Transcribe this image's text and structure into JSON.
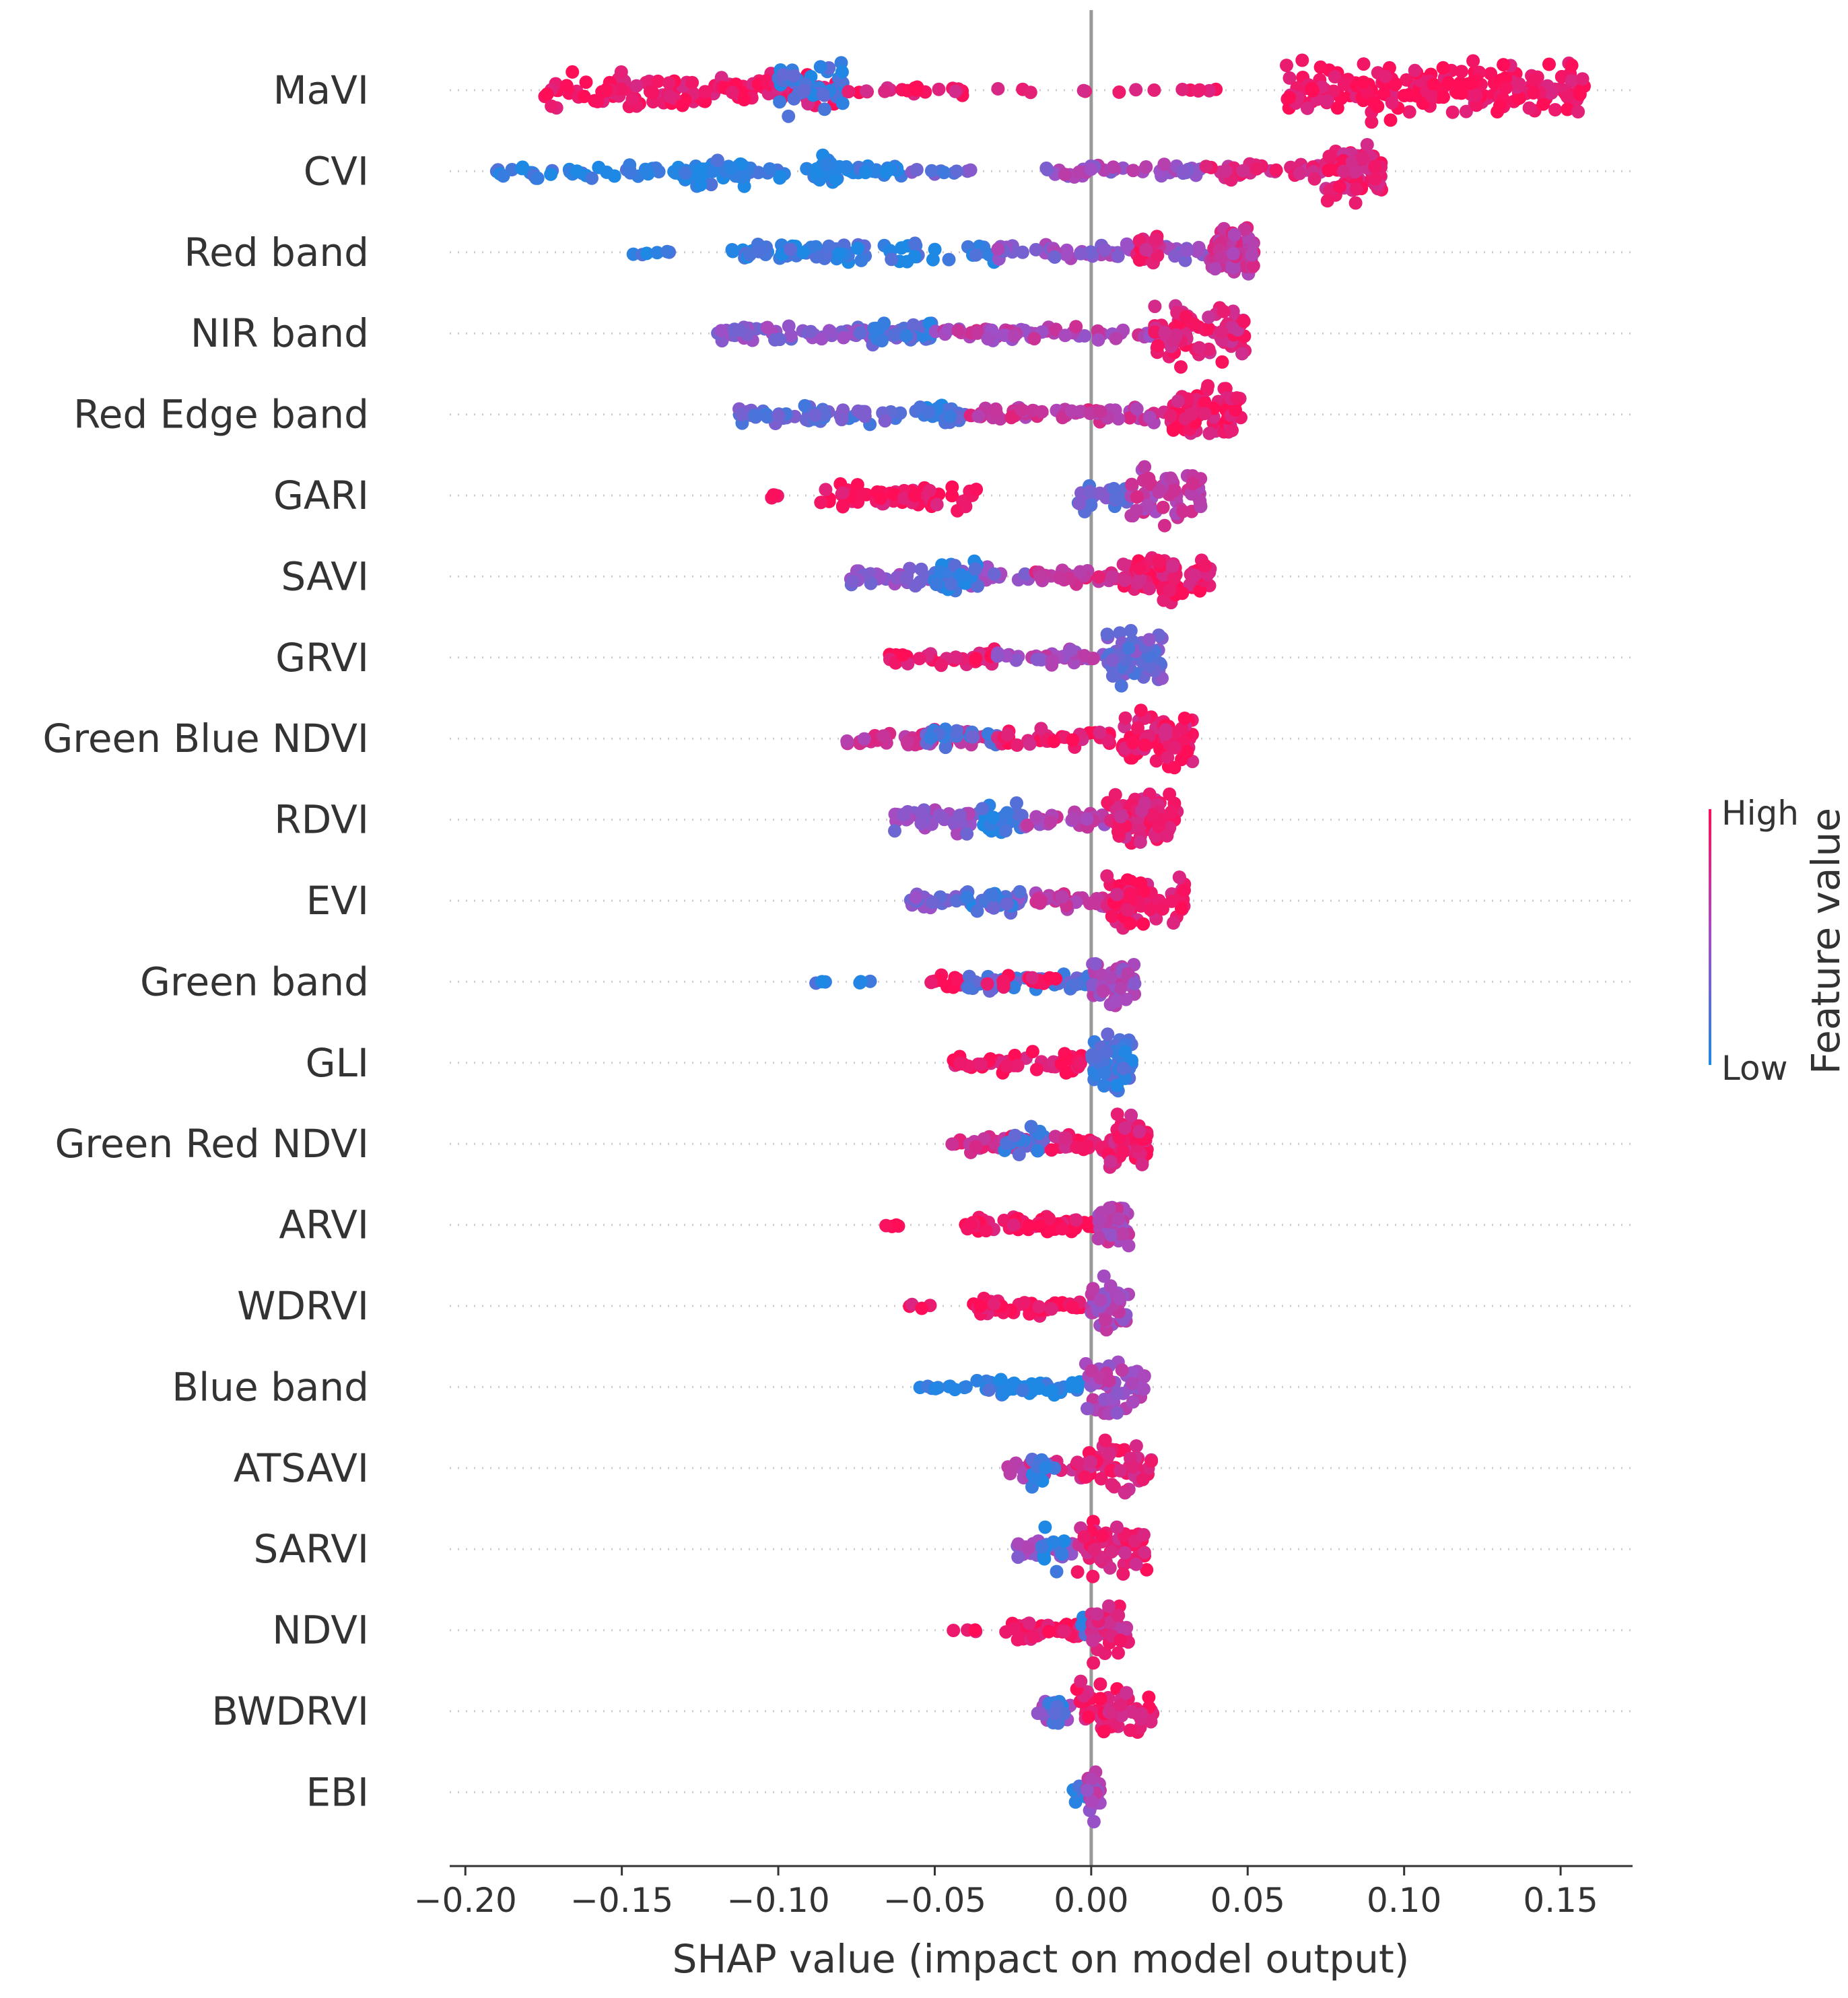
{
  "chart_data": {
    "type": "scatter",
    "subtype": "shap-beeswarm",
    "title": "",
    "xlabel": "SHAP value (impact on model output)",
    "ylabel": "",
    "xlim": [
      -0.205,
      0.173
    ],
    "xticks": [
      -0.2,
      -0.15,
      -0.1,
      -0.05,
      0.0,
      0.05,
      0.1,
      0.15
    ],
    "xtick_labels": [
      "−0.20",
      "−0.15",
      "−0.10",
      "−0.05",
      "0.00",
      "0.05",
      "0.10",
      "0.15"
    ],
    "grid": "dotted horizontal row guides",
    "zero_line": 0.0,
    "colorbar": {
      "title": "Feature value",
      "high_label": "High",
      "low_label": "Low",
      "high_color": "#ff0d57",
      "mid_color": "#a14ec6",
      "low_color": "#1e88e5"
    },
    "features": [
      {
        "name": "MaVI",
        "clusters": [
          {
            "x0": -0.175,
            "x1": -0.08,
            "c": 0.92,
            "w": 0.3,
            "n": 140
          },
          {
            "x0": -0.1,
            "x1": -0.078,
            "c": 0.15,
            "w": 0.45,
            "n": 40
          },
          {
            "x0": -0.08,
            "x1": -0.04,
            "c": 0.9,
            "w": 0.1,
            "n": 20
          },
          {
            "x0": -0.03,
            "x1": 0.045,
            "c": 0.92,
            "w": 0.05,
            "n": 14
          },
          {
            "x0": 0.062,
            "x1": 0.158,
            "c": 0.95,
            "w": 0.45,
            "n": 200
          }
        ]
      },
      {
        "name": "CVI",
        "clusters": [
          {
            "x0": -0.19,
            "x1": -0.06,
            "c": 0.05,
            "w": 0.12,
            "n": 110
          },
          {
            "x0": -0.13,
            "x1": -0.11,
            "c": 0.05,
            "w": 0.25,
            "n": 30
          },
          {
            "x0": -0.088,
            "x1": -0.08,
            "c": 0.05,
            "w": 0.3,
            "n": 20
          },
          {
            "x0": -0.06,
            "x1": -0.035,
            "c": 0.25,
            "w": 0.05,
            "n": 10
          },
          {
            "x0": -0.017,
            "x1": 0.035,
            "c": 0.5,
            "w": 0.12,
            "n": 45
          },
          {
            "x0": 0.035,
            "x1": 0.075,
            "c": 0.8,
            "w": 0.15,
            "n": 30
          },
          {
            "x0": 0.075,
            "x1": 0.093,
            "c": 0.85,
            "w": 0.45,
            "n": 70
          }
        ]
      },
      {
        "name": "Red band",
        "clusters": [
          {
            "x0": -0.147,
            "x1": -0.133,
            "c": 0.05,
            "w": 0.05,
            "n": 6
          },
          {
            "x0": -0.115,
            "x1": -0.03,
            "c": 0.1,
            "w": 0.15,
            "n": 80
          },
          {
            "x0": -0.03,
            "x1": 0.038,
            "c": 0.45,
            "w": 0.12,
            "n": 60
          },
          {
            "x0": 0.014,
            "x1": 0.022,
            "c": 0.85,
            "w": 0.3,
            "n": 20
          },
          {
            "x0": 0.038,
            "x1": 0.052,
            "c": 0.7,
            "w": 0.45,
            "n": 70
          }
        ]
      },
      {
        "name": "NIR band",
        "clusters": [
          {
            "x0": -0.12,
            "x1": -0.06,
            "c": 0.4,
            "w": 0.15,
            "n": 70
          },
          {
            "x0": -0.07,
            "x1": -0.05,
            "c": 0.15,
            "w": 0.25,
            "n": 30
          },
          {
            "x0": -0.05,
            "x1": 0.02,
            "c": 0.6,
            "w": 0.12,
            "n": 60
          },
          {
            "x0": 0.02,
            "x1": 0.05,
            "c": 0.85,
            "w": 0.45,
            "n": 90
          }
        ]
      },
      {
        "name": "Red Edge band",
        "clusters": [
          {
            "x0": -0.113,
            "x1": -0.04,
            "c": 0.25,
            "w": 0.15,
            "n": 70
          },
          {
            "x0": -0.055,
            "x1": -0.045,
            "c": 0.1,
            "w": 0.25,
            "n": 15
          },
          {
            "x0": -0.04,
            "x1": 0.025,
            "c": 0.7,
            "w": 0.12,
            "n": 60
          },
          {
            "x0": 0.025,
            "x1": 0.048,
            "c": 0.9,
            "w": 0.45,
            "n": 70
          }
        ]
      },
      {
        "name": "GARI",
        "clusters": [
          {
            "x0": -0.103,
            "x1": -0.098,
            "c": 0.95,
            "w": 0.05,
            "n": 4
          },
          {
            "x0": -0.087,
            "x1": -0.035,
            "c": 0.95,
            "w": 0.2,
            "n": 70
          },
          {
            "x0": -0.005,
            "x1": 0.012,
            "c": 0.3,
            "w": 0.3,
            "n": 25
          },
          {
            "x0": 0.012,
            "x1": 0.035,
            "c": 0.65,
            "w": 0.45,
            "n": 60
          }
        ]
      },
      {
        "name": "SAVI",
        "clusters": [
          {
            "x0": -0.078,
            "x1": -0.02,
            "c": 0.4,
            "w": 0.15,
            "n": 60
          },
          {
            "x0": -0.05,
            "x1": -0.036,
            "c": 0.1,
            "w": 0.3,
            "n": 25
          },
          {
            "x0": -0.02,
            "x1": 0.01,
            "c": 0.75,
            "w": 0.12,
            "n": 25
          },
          {
            "x0": 0.01,
            "x1": 0.038,
            "c": 0.9,
            "w": 0.45,
            "n": 80
          }
        ]
      },
      {
        "name": "GRVI",
        "clusters": [
          {
            "x0": -0.065,
            "x1": -0.03,
            "c": 0.9,
            "w": 0.15,
            "n": 40
          },
          {
            "x0": -0.03,
            "x1": 0.005,
            "c": 0.55,
            "w": 0.12,
            "n": 30
          },
          {
            "x0": 0.005,
            "x1": 0.023,
            "c": 0.3,
            "w": 0.45,
            "n": 80
          }
        ]
      },
      {
        "name": "Green Blue NDVI",
        "clusters": [
          {
            "x0": -0.08,
            "x1": -0.03,
            "c": 0.7,
            "w": 0.15,
            "n": 50
          },
          {
            "x0": -0.055,
            "x1": -0.03,
            "c": 0.2,
            "w": 0.25,
            "n": 20
          },
          {
            "x0": -0.03,
            "x1": 0.01,
            "c": 0.9,
            "w": 0.15,
            "n": 40
          },
          {
            "x0": 0.01,
            "x1": 0.033,
            "c": 0.9,
            "w": 0.45,
            "n": 80
          }
        ]
      },
      {
        "name": "RDVI",
        "clusters": [
          {
            "x0": -0.063,
            "x1": -0.035,
            "c": 0.45,
            "w": 0.2,
            "n": 40
          },
          {
            "x0": -0.035,
            "x1": -0.022,
            "c": 0.1,
            "w": 0.35,
            "n": 25
          },
          {
            "x0": -0.022,
            "x1": 0.005,
            "c": 0.6,
            "w": 0.15,
            "n": 30
          },
          {
            "x0": 0.005,
            "x1": 0.028,
            "c": 0.85,
            "w": 0.45,
            "n": 80
          }
        ]
      },
      {
        "name": "EVI",
        "clusters": [
          {
            "x0": -0.058,
            "x1": -0.02,
            "c": 0.35,
            "w": 0.15,
            "n": 45
          },
          {
            "x0": -0.04,
            "x1": -0.022,
            "c": 0.15,
            "w": 0.25,
            "n": 20
          },
          {
            "x0": -0.02,
            "x1": 0.005,
            "c": 0.65,
            "w": 0.15,
            "n": 30
          },
          {
            "x0": 0.005,
            "x1": 0.03,
            "c": 0.9,
            "w": 0.45,
            "n": 80
          }
        ]
      },
      {
        "name": "Green band",
        "clusters": [
          {
            "x0": -0.09,
            "x1": -0.07,
            "c": 0.05,
            "w": 0.05,
            "n": 6
          },
          {
            "x0": -0.053,
            "x1": -0.04,
            "c": 0.95,
            "w": 0.12,
            "n": 12
          },
          {
            "x0": -0.04,
            "x1": 0.0,
            "c": 0.2,
            "w": 0.15,
            "n": 40
          },
          {
            "x0": -0.035,
            "x1": -0.01,
            "c": 0.9,
            "w": 0.1,
            "n": 15
          },
          {
            "x0": 0.0,
            "x1": 0.014,
            "c": 0.55,
            "w": 0.45,
            "n": 50
          }
        ]
      },
      {
        "name": "GLI",
        "clusters": [
          {
            "x0": -0.044,
            "x1": 0.0,
            "c": 0.92,
            "w": 0.15,
            "n": 50
          },
          {
            "x0": 0.0,
            "x1": 0.013,
            "c": 0.15,
            "w": 0.45,
            "n": 60
          }
        ]
      },
      {
        "name": "Green Red NDVI",
        "clusters": [
          {
            "x0": -0.046,
            "x1": -0.015,
            "c": 0.8,
            "w": 0.15,
            "n": 40
          },
          {
            "x0": -0.028,
            "x1": -0.015,
            "c": 0.2,
            "w": 0.25,
            "n": 20
          },
          {
            "x0": -0.015,
            "x1": 0.005,
            "c": 0.85,
            "w": 0.15,
            "n": 25
          },
          {
            "x0": 0.005,
            "x1": 0.018,
            "c": 0.85,
            "w": 0.45,
            "n": 60
          }
        ]
      },
      {
        "name": "ARVI",
        "clusters": [
          {
            "x0": -0.068,
            "x1": -0.058,
            "c": 0.95,
            "w": 0.05,
            "n": 4
          },
          {
            "x0": -0.044,
            "x1": 0.002,
            "c": 0.95,
            "w": 0.15,
            "n": 50
          },
          {
            "x0": 0.002,
            "x1": 0.012,
            "c": 0.6,
            "w": 0.45,
            "n": 50
          }
        ]
      },
      {
        "name": "WDRVI",
        "clusters": [
          {
            "x0": -0.06,
            "x1": -0.05,
            "c": 0.95,
            "w": 0.05,
            "n": 4
          },
          {
            "x0": -0.038,
            "x1": 0.0,
            "c": 0.95,
            "w": 0.15,
            "n": 50
          },
          {
            "x0": 0.0,
            "x1": 0.012,
            "c": 0.55,
            "w": 0.45,
            "n": 50
          }
        ]
      },
      {
        "name": "Blue band",
        "clusters": [
          {
            "x0": -0.057,
            "x1": -0.04,
            "c": 0.05,
            "w": 0.05,
            "n": 10
          },
          {
            "x0": -0.038,
            "x1": -0.002,
            "c": 0.05,
            "w": 0.15,
            "n": 40
          },
          {
            "x0": -0.002,
            "x1": 0.017,
            "c": 0.55,
            "w": 0.45,
            "n": 50
          }
        ]
      },
      {
        "name": "ATSAVI",
        "clusters": [
          {
            "x0": -0.027,
            "x1": -0.005,
            "c": 0.7,
            "w": 0.15,
            "n": 25
          },
          {
            "x0": -0.02,
            "x1": -0.01,
            "c": 0.1,
            "w": 0.3,
            "n": 15
          },
          {
            "x0": -0.005,
            "x1": 0.02,
            "c": 0.85,
            "w": 0.45,
            "n": 60
          }
        ]
      },
      {
        "name": "SARVI",
        "clusters": [
          {
            "x0": -0.024,
            "x1": -0.005,
            "c": 0.5,
            "w": 0.2,
            "n": 25
          },
          {
            "x0": -0.016,
            "x1": -0.008,
            "c": 0.1,
            "w": 0.35,
            "n": 15
          },
          {
            "x0": -0.005,
            "x1": 0.018,
            "c": 0.85,
            "w": 0.45,
            "n": 60
          }
        ]
      },
      {
        "name": "NDVI",
        "clusters": [
          {
            "x0": -0.046,
            "x1": -0.036,
            "c": 0.95,
            "w": 0.05,
            "n": 4
          },
          {
            "x0": -0.028,
            "x1": -0.002,
            "c": 0.95,
            "w": 0.15,
            "n": 40
          },
          {
            "x0": -0.003,
            "x1": 0.003,
            "c": 0.15,
            "w": 0.25,
            "n": 8
          },
          {
            "x0": 0.0,
            "x1": 0.012,
            "c": 0.8,
            "w": 0.45,
            "n": 45
          }
        ]
      },
      {
        "name": "BWDRVI",
        "clusters": [
          {
            "x0": -0.018,
            "x1": -0.005,
            "c": 0.5,
            "w": 0.2,
            "n": 20
          },
          {
            "x0": -0.014,
            "x1": -0.008,
            "c": 0.1,
            "w": 0.3,
            "n": 10
          },
          {
            "x0": -0.005,
            "x1": 0.02,
            "c": 0.88,
            "w": 0.45,
            "n": 55
          }
        ]
      },
      {
        "name": "EBI",
        "clusters": [
          {
            "x0": -0.006,
            "x1": -0.001,
            "c": 0.1,
            "w": 0.2,
            "n": 10
          },
          {
            "x0": -0.002,
            "x1": 0.003,
            "c": 0.55,
            "w": 0.45,
            "n": 25
          }
        ]
      }
    ]
  }
}
